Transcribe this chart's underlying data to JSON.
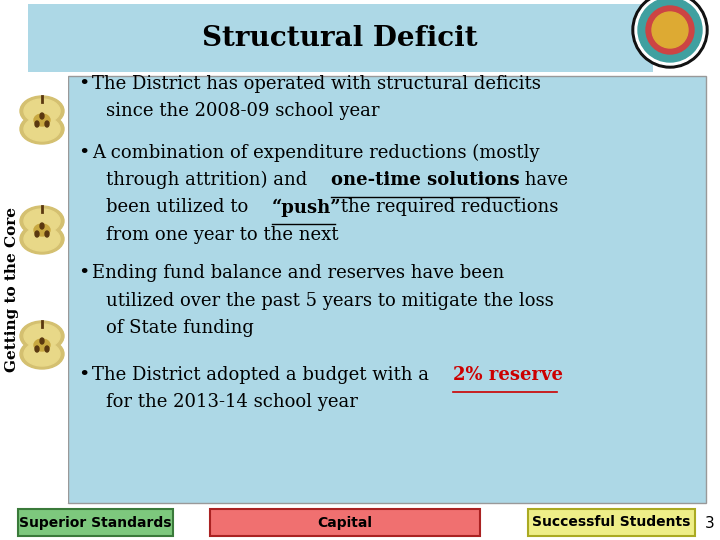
{
  "title": "Structural Deficit",
  "title_bg": "#ADD8E6",
  "slide_bg": "#FFFFFF",
  "content_bg": "#ADD8E6",
  "footer_buttons": [
    {
      "label": "Superior Standards",
      "bg": "#7DC87D",
      "border": "#3A7A3A",
      "text_color": "#000000"
    },
    {
      "label": "Capital",
      "bg": "#F07070",
      "border": "#AA2222",
      "text_color": "#000000"
    },
    {
      "label": "Successful Students",
      "bg": "#EEEE88",
      "border": "#AAAA22",
      "text_color": "#000000"
    }
  ],
  "page_number": "3",
  "sidebar_text": "Getting to the Core",
  "title_fontsize": 20,
  "bullet_fontsize": 13,
  "footer_fontsize": 10,
  "sidebar_fontsize": 11
}
